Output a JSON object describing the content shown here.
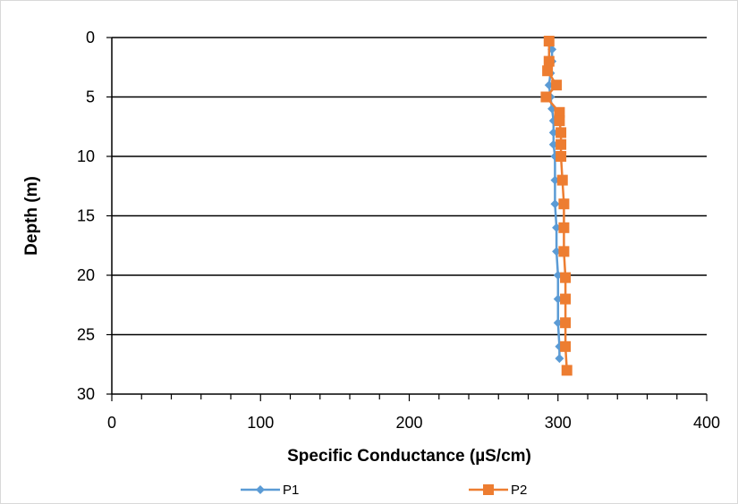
{
  "chart_data": {
    "type": "scatter",
    "title": "",
    "xlabel": "Specific Conductance (µS/cm)",
    "ylabel": "Depth (m)",
    "xlim": [
      0,
      400
    ],
    "ylim": [
      0,
      30
    ],
    "y_inverted": true,
    "xticks": [
      "0",
      "100",
      "200",
      "300",
      "400"
    ],
    "yticks": [
      "0",
      "5",
      "10",
      "15",
      "20",
      "25",
      "30"
    ],
    "grid": "horizontal",
    "legend": "bottom",
    "series": [
      {
        "name": "P1",
        "color": "#5b9bd5",
        "marker": "diamond",
        "points": [
          {
            "x": 296,
            "y": 1
          },
          {
            "x": 296,
            "y": 2
          },
          {
            "x": 295,
            "y": 3
          },
          {
            "x": 294,
            "y": 4
          },
          {
            "x": 295,
            "y": 5
          },
          {
            "x": 296,
            "y": 6
          },
          {
            "x": 297,
            "y": 7
          },
          {
            "x": 297,
            "y": 8
          },
          {
            "x": 297,
            "y": 9
          },
          {
            "x": 298,
            "y": 10
          },
          {
            "x": 298,
            "y": 12
          },
          {
            "x": 298,
            "y": 14
          },
          {
            "x": 299,
            "y": 16
          },
          {
            "x": 299,
            "y": 18
          },
          {
            "x": 300,
            "y": 20
          },
          {
            "x": 300,
            "y": 22
          },
          {
            "x": 300,
            "y": 24
          },
          {
            "x": 301,
            "y": 26
          },
          {
            "x": 301,
            "y": 27
          }
        ]
      },
      {
        "name": "P2",
        "color": "#ed7d31",
        "marker": "square",
        "points": [
          {
            "x": 294,
            "y": 0.3
          },
          {
            "x": 294,
            "y": 2
          },
          {
            "x": 293,
            "y": 2.8
          },
          {
            "x": 299,
            "y": 4
          },
          {
            "x": 292,
            "y": 5
          },
          {
            "x": 301,
            "y": 6.3
          },
          {
            "x": 301,
            "y": 7
          },
          {
            "x": 302,
            "y": 8
          },
          {
            "x": 302,
            "y": 9
          },
          {
            "x": 302,
            "y": 10
          },
          {
            "x": 303,
            "y": 12
          },
          {
            "x": 304,
            "y": 14
          },
          {
            "x": 304,
            "y": 16
          },
          {
            "x": 304,
            "y": 18
          },
          {
            "x": 305,
            "y": 20.2
          },
          {
            "x": 305,
            "y": 22
          },
          {
            "x": 305,
            "y": 24
          },
          {
            "x": 305,
            "y": 26
          },
          {
            "x": 306,
            "y": 28
          }
        ]
      }
    ]
  }
}
